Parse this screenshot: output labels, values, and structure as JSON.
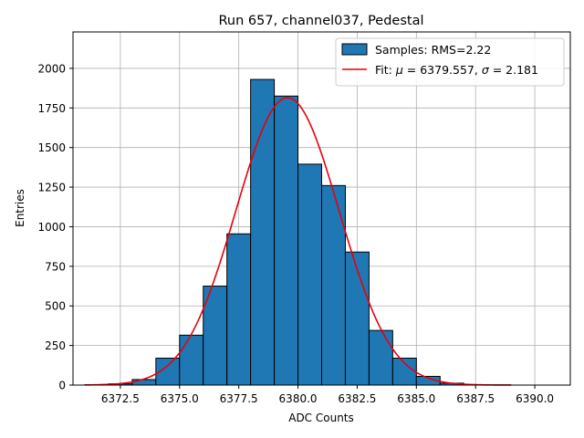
{
  "chart_data": {
    "type": "bar",
    "title": "Run 657, channel037, Pedestal",
    "xlabel": "ADC Counts",
    "ylabel": "Entries",
    "xlim": [
      6370.5,
      6391.5
    ],
    "ylim": [
      0,
      2230
    ],
    "xticks": [
      6372.5,
      6375.0,
      6377.5,
      6380.0,
      6382.5,
      6385.0,
      6387.5,
      6390.0
    ],
    "yticks": [
      0,
      250,
      500,
      750,
      1000,
      1250,
      1500,
      1750,
      2000
    ],
    "grid": true,
    "legend_position": "top-right",
    "histogram": {
      "label": "Samples: RMS=2.22",
      "color": "#1f77b4",
      "bin_width": 1,
      "bin_starts": [
        6371,
        6372,
        6373,
        6374,
        6375,
        6376,
        6377,
        6378,
        6379,
        6380,
        6381,
        6382,
        6383,
        6384,
        6385,
        6386,
        6387,
        6388,
        6389,
        6390
      ],
      "values": [
        2,
        8,
        35,
        170,
        315,
        625,
        955,
        1930,
        1825,
        1395,
        1260,
        840,
        345,
        170,
        55,
        12,
        3,
        1,
        0,
        0
      ]
    },
    "fit": {
      "label": "Fit: μ = 6379.557, σ = 2.181",
      "label_prefix": "Fit: ",
      "mu_symbol": "μ",
      "sigma_symbol": "σ",
      "mu_text": " = 6379.557, ",
      "sigma_text": " = 2.181",
      "color": "#e8000b",
      "mu": 6379.557,
      "sigma": 2.181,
      "amplitude": 1815,
      "x_range": [
        6371,
        6389
      ]
    }
  }
}
